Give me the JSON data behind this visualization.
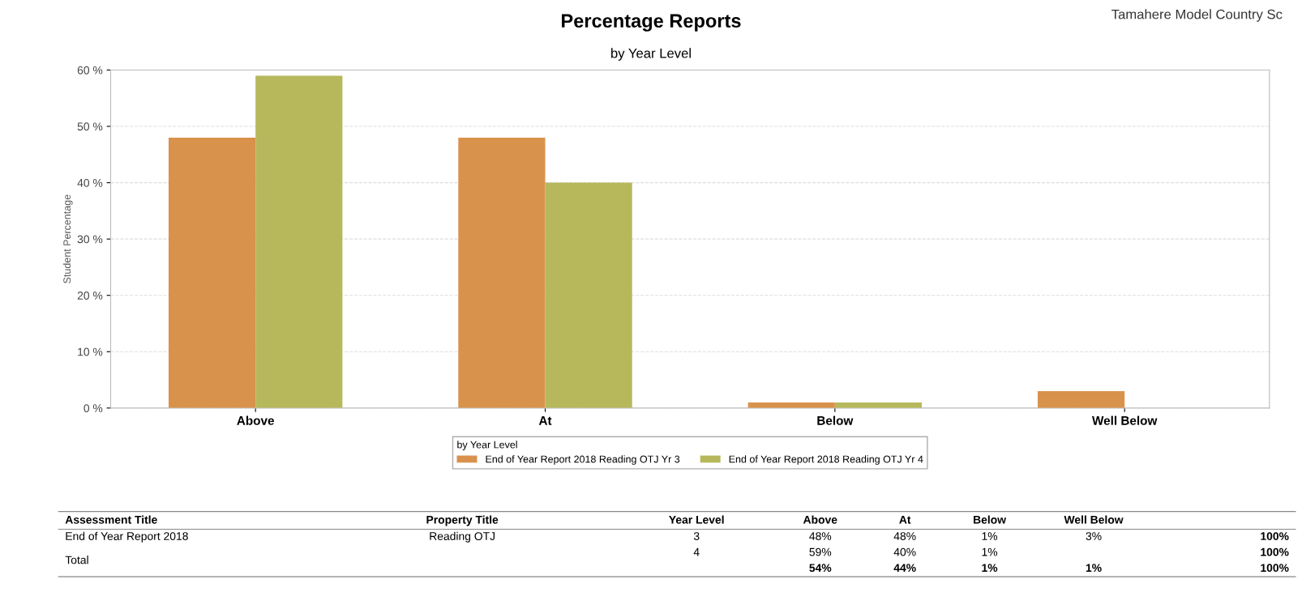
{
  "chart_data": {
    "type": "bar",
    "title": "Percentage Reports",
    "subtitle": "by Year Level",
    "ylabel": "Student Percentage",
    "legend_title": "by Year Level",
    "categories": [
      "Above",
      "At",
      "Below",
      "Well Below"
    ],
    "series": [
      {
        "name": "End of Year Report 2018 Reading OTJ Yr 3",
        "color": "#d9924c",
        "values": [
          48,
          48,
          1,
          3
        ]
      },
      {
        "name": "End of Year Report 2018 Reading OTJ Yr 4",
        "color": "#b7b85c",
        "values": [
          59,
          40,
          1,
          null
        ]
      }
    ],
    "ylim": [
      0,
      60
    ],
    "yticks": [
      {
        "value": 0,
        "label": "0 %"
      },
      {
        "value": 10,
        "label": "10 %"
      },
      {
        "value": 20,
        "label": "20 %"
      },
      {
        "value": 30,
        "label": "30 %"
      },
      {
        "value": 40,
        "label": "40 %"
      },
      {
        "value": 50,
        "label": "50 %"
      },
      {
        "value": 60,
        "label": "60 %"
      }
    ],
    "grid": "y",
    "legend": "bottom",
    "annotations": [
      "Tamahere Model Country Sc",
      "Assessment Title",
      "Property Title",
      "Year Level",
      "End of Year Report 2018",
      "Reading OTJ",
      "3",
      "4",
      "Total",
      "48%",
      "48%",
      "1%",
      "3%",
      "59%",
      "40%",
      "1%",
      "54%",
      "44%",
      "1%",
      "1%",
      "100%",
      "100%",
      "100%"
    ]
  }
}
